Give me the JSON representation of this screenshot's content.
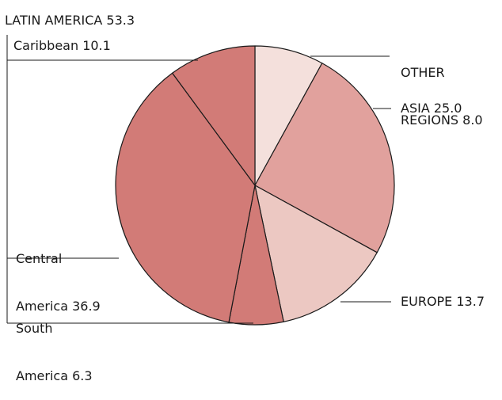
{
  "chart_data": {
    "type": "pie",
    "title": "",
    "group_label": "LATIN AMERICA 53.3",
    "slices": [
      {
        "label": "OTHER REGIONS 8.0",
        "line1": "OTHER",
        "line2": "REGIONS 8.0",
        "value": 8.0,
        "color": "#f4e0dc"
      },
      {
        "label": "ASIA 25.0",
        "value": 25.0,
        "color": "#e1a19d"
      },
      {
        "label": "EUROPE 13.7",
        "value": 13.7,
        "color": "#ecc8c2"
      },
      {
        "label": "South America 6.3",
        "line1": "South",
        "line2": "America 6.3",
        "value": 6.3,
        "color": "#d27b77"
      },
      {
        "label": "Central America 36.9",
        "line1": "Central",
        "line2": "America 36.9",
        "value": 36.9,
        "color": "#d27b77"
      },
      {
        "label": "Caribbean 10.1",
        "value": 10.1,
        "color": "#d27b77"
      }
    ]
  }
}
